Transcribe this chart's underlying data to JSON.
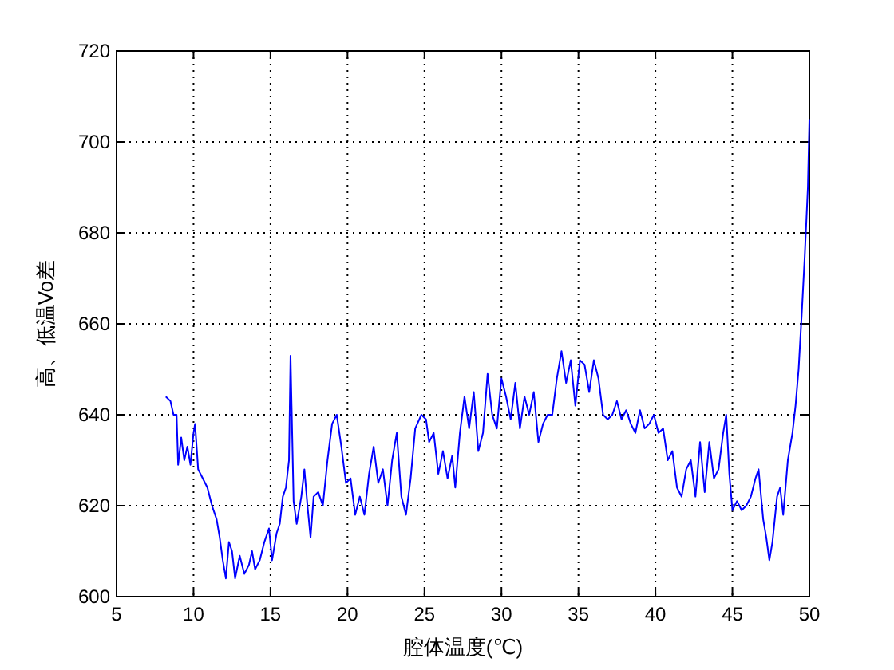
{
  "chart_data": {
    "type": "line",
    "xlabel": "腔体温度(℃)",
    "ylabel": "高、低温Vo差",
    "xlim": [
      5,
      50
    ],
    "ylim": [
      600,
      720
    ],
    "xticks": [
      5,
      10,
      15,
      20,
      25,
      30,
      35,
      40,
      45,
      50
    ],
    "yticks": [
      600,
      620,
      640,
      660,
      680,
      700,
      720
    ],
    "grid": true,
    "series": [
      {
        "color": "#0000ff",
        "x": [
          8.2,
          8.5,
          8.7,
          8.9,
          9.0,
          9.2,
          9.4,
          9.6,
          9.8,
          10.0,
          10.1,
          10.3,
          10.6,
          10.9,
          11.2,
          11.5,
          11.7,
          11.9,
          12.1,
          12.3,
          12.5,
          12.7,
          13.0,
          13.3,
          13.6,
          13.8,
          14.0,
          14.3,
          14.6,
          14.9,
          15.1,
          15.4,
          15.6,
          15.8,
          16.0,
          16.2,
          16.3,
          16.5,
          16.7,
          17.0,
          17.2,
          17.4,
          17.6,
          17.8,
          18.1,
          18.4,
          18.7,
          19.0,
          19.3,
          19.6,
          19.9,
          20.2,
          20.5,
          20.8,
          21.1,
          21.4,
          21.7,
          22.0,
          22.3,
          22.6,
          22.9,
          23.2,
          23.5,
          23.8,
          24.1,
          24.4,
          24.8,
          25.1,
          25.3,
          25.6,
          25.9,
          26.2,
          26.5,
          26.8,
          27.0,
          27.3,
          27.6,
          27.9,
          28.2,
          28.5,
          28.8,
          29.1,
          29.4,
          29.7,
          30.0,
          30.3,
          30.6,
          30.9,
          31.2,
          31.5,
          31.8,
          32.1,
          32.4,
          32.7,
          33.0,
          33.3,
          33.6,
          33.9,
          34.2,
          34.5,
          34.8,
          35.1,
          35.4,
          35.7,
          36.0,
          36.3,
          36.6,
          36.9,
          37.2,
          37.5,
          37.8,
          38.1,
          38.4,
          38.7,
          39.0,
          39.3,
          39.6,
          39.9,
          40.2,
          40.5,
          40.8,
          41.1,
          41.4,
          41.7,
          42.0,
          42.3,
          42.6,
          42.9,
          43.2,
          43.5,
          43.8,
          44.1,
          44.4,
          44.6,
          44.8,
          45.0,
          45.3,
          45.6,
          45.9,
          46.2,
          46.5,
          46.7,
          47.0,
          47.2,
          47.4,
          47.6,
          47.9,
          48.1,
          48.3,
          48.6,
          48.9,
          49.1,
          49.3,
          49.5,
          49.7,
          49.9,
          50.0
        ],
        "values": [
          644,
          643,
          640,
          640,
          629,
          635,
          630,
          633,
          629,
          636,
          638,
          628,
          626,
          624,
          620,
          617,
          613,
          608,
          604,
          612,
          610,
          604,
          609,
          605,
          607,
          610,
          606,
          608,
          612,
          615,
          608,
          614,
          616,
          622,
          624,
          630,
          653,
          621,
          616,
          622,
          628,
          620,
          613,
          622,
          623,
          620,
          630,
          638,
          640,
          633,
          625,
          626,
          618,
          622,
          618,
          627,
          633,
          625,
          628,
          620,
          630,
          636,
          622,
          618,
          626,
          637,
          640,
          639,
          634,
          636,
          627,
          632,
          626,
          631,
          624,
          636,
          644,
          637,
          645,
          632,
          636,
          649,
          640,
          637,
          648,
          644,
          639,
          647,
          637,
          644,
          640,
          645,
          634,
          638,
          640,
          640,
          648,
          654,
          647,
          652,
          642,
          652,
          651,
          645,
          652,
          648,
          640,
          639,
          640,
          643,
          639,
          641,
          638,
          636,
          641,
          637,
          638,
          640,
          636,
          637,
          630,
          632,
          624,
          622,
          628,
          630,
          622,
          634,
          623,
          634,
          626,
          628,
          636,
          640,
          627,
          619,
          621,
          619,
          620,
          622,
          626,
          628,
          617,
          613,
          608,
          612,
          622,
          624,
          618,
          630,
          636,
          642,
          650,
          662,
          675,
          690,
          705
        ]
      }
    ]
  }
}
